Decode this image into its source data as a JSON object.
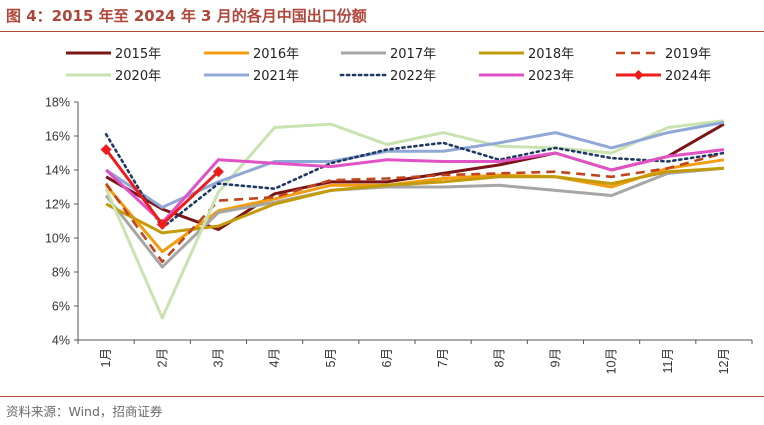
{
  "figure": {
    "title": "图 4：2015 年至 2024 年 3 月的各月中国出口份额",
    "source": "资料来源：Wind，招商证券"
  },
  "chart_data": {
    "type": "line",
    "categories": [
      "1月",
      "2月",
      "3月",
      "4月",
      "5月",
      "6月",
      "7月",
      "8月",
      "9月",
      "10月",
      "11月",
      "12月"
    ],
    "ylim": [
      4,
      18
    ],
    "yticks": [
      "4%",
      "6%",
      "8%",
      "10%",
      "12%",
      "14%",
      "16%",
      "18%"
    ],
    "grid": false,
    "legend_position": "top",
    "series": [
      {
        "name": "2015年",
        "color": "#7b1416",
        "style": "solid",
        "values": [
          13.6,
          11.7,
          10.5,
          12.6,
          13.3,
          13.3,
          13.8,
          14.3,
          15.0,
          14.0,
          14.8,
          16.7
        ]
      },
      {
        "name": "2016年",
        "color": "#f29c0f",
        "style": "solid",
        "values": [
          13.1,
          9.2,
          11.6,
          12.3,
          13.1,
          13.1,
          13.5,
          13.7,
          13.6,
          13.0,
          14.1,
          14.6
        ]
      },
      {
        "name": "2017年",
        "color": "#a6a6a6",
        "style": "solid",
        "values": [
          12.5,
          8.3,
          11.5,
          12.1,
          12.8,
          13.0,
          13.0,
          13.1,
          12.8,
          12.5,
          13.8,
          14.1
        ]
      },
      {
        "name": "2018年",
        "color": "#c39a08",
        "style": "solid",
        "values": [
          12.0,
          10.3,
          10.7,
          12.0,
          12.8,
          13.1,
          13.3,
          13.6,
          13.6,
          13.2,
          13.9,
          14.1
        ]
      },
      {
        "name": "2019年",
        "color": "#c0441c",
        "style": "dash",
        "values": [
          13.2,
          8.6,
          12.2,
          12.4,
          13.4,
          13.5,
          13.7,
          13.8,
          13.9,
          13.6,
          14.1,
          15.0
        ]
      },
      {
        "name": "2020年",
        "color": "#c9e3b0",
        "style": "solid",
        "values": [
          12.9,
          5.3,
          12.7,
          16.5,
          16.7,
          15.5,
          16.2,
          15.4,
          15.3,
          15.0,
          16.5,
          16.9
        ]
      },
      {
        "name": "2021年",
        "color": "#8fa8d6",
        "style": "solid",
        "values": [
          14.0,
          11.8,
          13.3,
          14.5,
          14.5,
          15.1,
          15.1,
          15.6,
          16.2,
          15.3,
          16.2,
          16.8
        ]
      },
      {
        "name": "2022年",
        "color": "#1f3864",
        "style": "dot",
        "values": [
          16.1,
          10.6,
          13.2,
          12.9,
          14.4,
          15.2,
          15.6,
          14.6,
          15.3,
          14.7,
          14.5,
          15.0
        ]
      },
      {
        "name": "2023年",
        "color": "#e152c6",
        "style": "solid",
        "values": [
          14.0,
          10.9,
          14.6,
          14.4,
          14.2,
          14.6,
          14.5,
          14.5,
          15.0,
          14.0,
          14.8,
          15.2
        ]
      },
      {
        "name": "2024年",
        "color": "#ee1c1c",
        "style": "solid-marker",
        "values": [
          15.2,
          10.8,
          13.9,
          null,
          null,
          null,
          null,
          null,
          null,
          null,
          null,
          null
        ]
      }
    ]
  }
}
